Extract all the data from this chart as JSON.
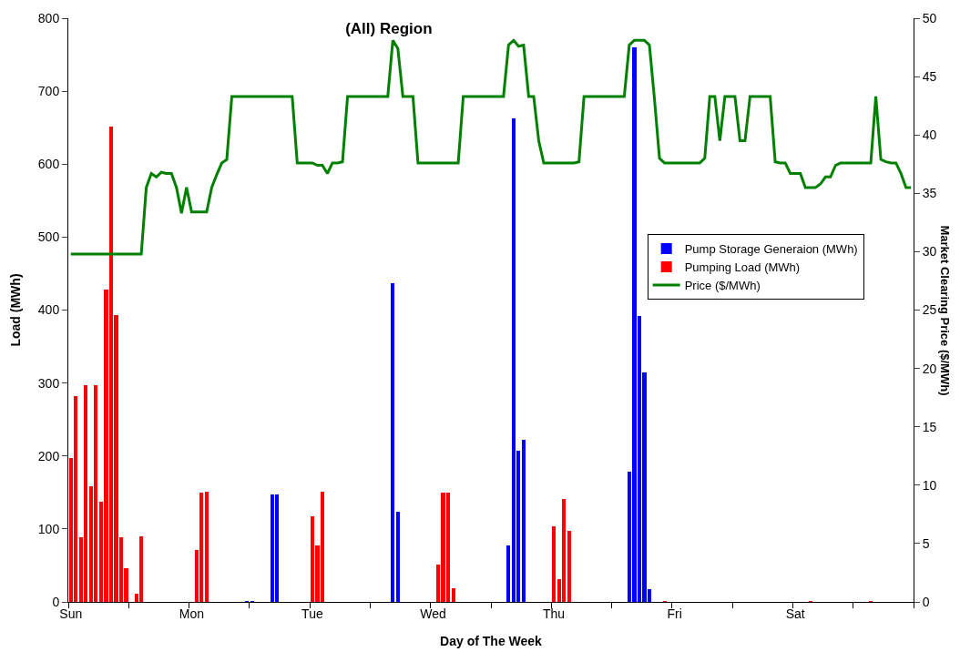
{
  "chart_data": {
    "type": "bar",
    "title": "(All) Region",
    "xlabel": "Day of The Week",
    "ylabel": "Load (MWh)",
    "y2label": "Market Clearing Price ($/MWh)",
    "categories": [
      "Sun",
      null,
      null,
      null,
      null,
      null,
      null,
      null,
      null,
      null,
      null,
      null,
      null,
      null,
      null,
      null,
      null,
      null,
      null,
      null,
      null,
      null,
      null,
      null,
      "Mon",
      null,
      null,
      null,
      null,
      null,
      null,
      null,
      null,
      null,
      null,
      null,
      null,
      null,
      null,
      null,
      null,
      null,
      null,
      null,
      null,
      null,
      null,
      null,
      "Tue",
      null,
      null,
      null,
      null,
      null,
      null,
      null,
      null,
      null,
      null,
      null,
      null,
      null,
      null,
      null,
      null,
      null,
      null,
      null,
      null,
      null,
      null,
      null,
      "Wed",
      null,
      null,
      null,
      null,
      null,
      null,
      null,
      null,
      null,
      null,
      null,
      null,
      null,
      null,
      null,
      null,
      null,
      null,
      null,
      null,
      null,
      null,
      null,
      "Thu",
      null,
      null,
      null,
      null,
      null,
      null,
      null,
      null,
      null,
      null,
      null,
      null,
      null,
      null,
      null,
      null,
      null,
      null,
      null,
      null,
      null,
      null,
      null,
      "Fri",
      null,
      null,
      null,
      null,
      null,
      null,
      null,
      null,
      null,
      null,
      null,
      null,
      null,
      null,
      null,
      null,
      null,
      null,
      null,
      null,
      null,
      null,
      null,
      "Sat",
      null,
      null,
      null,
      null,
      null,
      null,
      null,
      null,
      null,
      null,
      null,
      null,
      null,
      null,
      null,
      null,
      null,
      null,
      null,
      null,
      null,
      null,
      null
    ],
    "ylim": [
      0,
      800
    ],
    "yticks": [
      0,
      100,
      200,
      300,
      400,
      500,
      600,
      700,
      800
    ],
    "y2lim": [
      0,
      50
    ],
    "y2ticks": [
      0,
      5,
      10,
      15,
      20,
      25,
      30,
      35,
      40,
      45,
      50
    ],
    "legend": "right",
    "series": [
      {
        "name": "Pump Storage Generaion (MWh)",
        "color": "#0000ff",
        "values": [
          null,
          null,
          null,
          null,
          null,
          null,
          null,
          null,
          null,
          null,
          null,
          null,
          null,
          null,
          null,
          null,
          null,
          null,
          null,
          null,
          null,
          null,
          null,
          null,
          null,
          null,
          null,
          null,
          null,
          null,
          null,
          null,
          null,
          null,
          null,
          1,
          1,
          null,
          null,
          null,
          147,
          147,
          null,
          null,
          null,
          null,
          null,
          null,
          null,
          null,
          null,
          null,
          null,
          null,
          null,
          null,
          null,
          null,
          null,
          null,
          null,
          null,
          null,
          null,
          437,
          124,
          null,
          null,
          null,
          null,
          null,
          null,
          null,
          null,
          null,
          null,
          null,
          null,
          null,
          null,
          null,
          null,
          null,
          null,
          null,
          null,
          null,
          78,
          663,
          207,
          222,
          null,
          null,
          null,
          null,
          null,
          null,
          null,
          null,
          null,
          null,
          null,
          null,
          null,
          null,
          null,
          null,
          null,
          null,
          null,
          null,
          179,
          760,
          392,
          314,
          18,
          null,
          null,
          null,
          null,
          null,
          null,
          null,
          null,
          null,
          null,
          null,
          null,
          null,
          null,
          null,
          null,
          null,
          null,
          null,
          null,
          null,
          null,
          null,
          null,
          null,
          null,
          null,
          null,
          null,
          null,
          null,
          null,
          null,
          null,
          null,
          null,
          null,
          null,
          null,
          null,
          null,
          null,
          null,
          null,
          null,
          null,
          null,
          null,
          null,
          null,
          null,
          null
        ]
      },
      {
        "name": "Pumping Load (MWh)",
        "color": "#ff0000",
        "values": [
          197,
          282,
          88,
          297,
          158,
          297,
          137,
          428,
          652,
          393,
          88,
          46,
          null,
          11,
          90,
          null,
          null,
          null,
          null,
          null,
          null,
          null,
          null,
          null,
          null,
          71,
          150,
          151,
          null,
          null,
          null,
          null,
          null,
          null,
          null,
          null,
          null,
          null,
          null,
          null,
          null,
          null,
          null,
          null,
          null,
          null,
          null,
          null,
          117,
          77,
          151,
          null,
          null,
          null,
          null,
          null,
          null,
          null,
          null,
          null,
          null,
          null,
          null,
          null,
          null,
          null,
          null,
          null,
          null,
          null,
          null,
          null,
          null,
          51,
          150,
          150,
          19,
          null,
          null,
          null,
          null,
          null,
          null,
          null,
          null,
          null,
          null,
          null,
          null,
          null,
          null,
          null,
          null,
          null,
          null,
          null,
          103,
          31,
          141,
          97,
          null,
          null,
          null,
          null,
          null,
          null,
          null,
          null,
          null,
          null,
          null,
          null,
          null,
          null,
          null,
          null,
          null,
          null,
          1,
          null,
          null,
          null,
          null,
          null,
          null,
          null,
          null,
          null,
          null,
          null,
          null,
          null,
          null,
          null,
          null,
          null,
          null,
          null,
          null,
          null,
          null,
          null,
          null,
          null,
          null,
          null,
          null,
          1,
          null,
          null,
          null,
          null,
          null,
          null,
          null,
          null,
          null,
          null,
          null,
          1,
          null,
          null,
          null,
          null,
          null,
          null,
          null,
          null
        ]
      },
      {
        "name": "Price ($/MWh)",
        "type": "line",
        "axis": "y2",
        "color": "#008000",
        "values": [
          29.8,
          29.8,
          29.8,
          29.8,
          29.8,
          29.8,
          29.8,
          29.8,
          29.8,
          29.8,
          29.8,
          29.8,
          29.8,
          29.8,
          29.8,
          35.5,
          36.7,
          36.4,
          36.8,
          36.7,
          36.7,
          35.5,
          33.3,
          35.5,
          33.4,
          33.4,
          33.4,
          33.4,
          35.5,
          36.6,
          37.6,
          37.9,
          43.3,
          43.3,
          43.3,
          43.3,
          43.3,
          43.3,
          43.3,
          43.3,
          43.3,
          43.3,
          43.3,
          43.3,
          43.3,
          37.6,
          37.6,
          37.6,
          37.6,
          37.4,
          37.4,
          36.7,
          37.6,
          37.6,
          37.7,
          43.3,
          43.3,
          43.3,
          43.3,
          43.3,
          43.3,
          43.3,
          43.3,
          43.3,
          48.1,
          47.4,
          43.3,
          43.3,
          43.3,
          37.6,
          37.6,
          37.6,
          37.6,
          37.6,
          37.6,
          37.6,
          37.6,
          37.6,
          43.3,
          43.3,
          43.3,
          43.3,
          43.3,
          43.3,
          43.3,
          43.3,
          43.3,
          47.7,
          48.1,
          47.6,
          47.7,
          43.3,
          43.3,
          39.5,
          37.6,
          37.6,
          37.6,
          37.6,
          37.6,
          37.6,
          37.6,
          37.7,
          43.3,
          43.3,
          43.3,
          43.3,
          43.3,
          43.3,
          43.3,
          43.3,
          43.3,
          47.7,
          48.1,
          48.1,
          48.1,
          47.7,
          43.1,
          38.0,
          37.6,
          37.6,
          37.6,
          37.6,
          37.6,
          37.6,
          37.6,
          37.6,
          38.0,
          43.3,
          43.3,
          39.5,
          43.3,
          43.3,
          43.3,
          39.5,
          39.5,
          43.3,
          43.3,
          43.3,
          43.3,
          43.3,
          37.7,
          37.6,
          37.6,
          36.7,
          36.7,
          36.7,
          35.5,
          35.5,
          35.5,
          35.8,
          36.4,
          36.4,
          37.4,
          37.6,
          37.6,
          37.6,
          37.6,
          37.6,
          37.6,
          37.6,
          43.3,
          37.9,
          37.7,
          37.6,
          37.6,
          36.7,
          35.5,
          35.5
        ]
      }
    ]
  }
}
